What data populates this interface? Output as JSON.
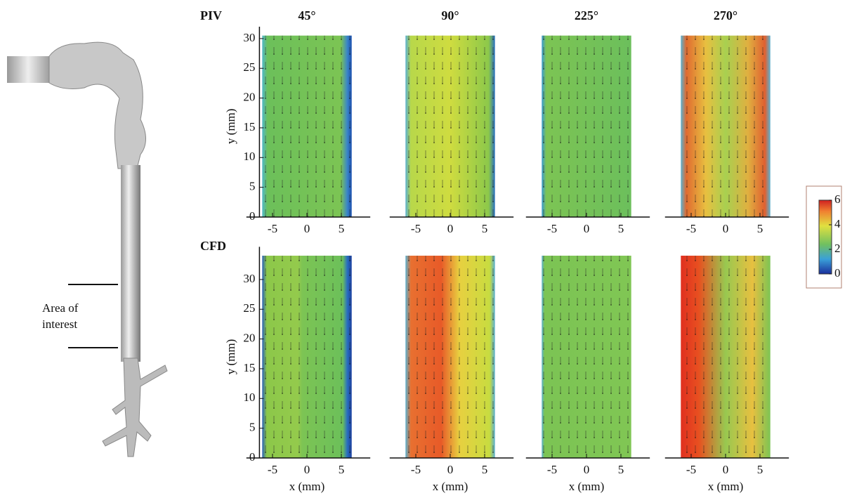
{
  "figure": {
    "row_labels": [
      "PIV",
      "CFD"
    ],
    "column_titles": [
      "45°",
      "90°",
      "225°",
      "270°"
    ],
    "y_axis_label": "y (mm)",
    "x_axis_label": "x (mm)",
    "yticks": [
      0,
      5,
      10,
      15,
      20,
      25,
      30
    ],
    "xticks": [
      -5,
      0,
      5
    ],
    "colorbar_ticks": [
      0,
      2,
      4,
      6
    ],
    "annotation": [
      "Area of",
      "interest"
    ]
  }
}
